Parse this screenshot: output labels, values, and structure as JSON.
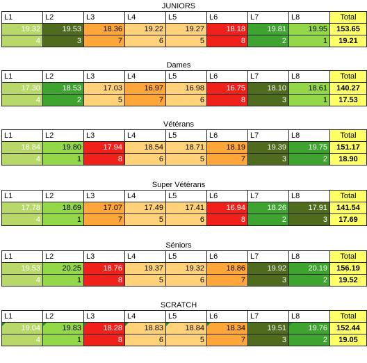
{
  "palette": {
    "dark_olive": "#4f6b1d",
    "green": "#3fa32f",
    "light_green": "#94d84a",
    "yellow_green": "#b9d86a",
    "light_orange": "#ffd27a",
    "orange": "#ffa63b",
    "red": "#f0201a",
    "total_yellow": "#ffff66",
    "rank_olive": "#6f9a2b"
  },
  "sections": [
    {
      "title": "JUNIORS",
      "headers": [
        "L1",
        "L2",
        "L3",
        "L4",
        "L5",
        "L6",
        "L7",
        "L8",
        "Total"
      ],
      "scores": [
        "19.32",
        "19.53",
        "18.36",
        "19.22",
        "19.27",
        "18.18",
        "19.81",
        "19.95",
        "153.65"
      ],
      "ranks": [
        "4",
        "3",
        "7",
        "6",
        "5",
        "8",
        "2",
        "1",
        "19.21"
      ]
    },
    {
      "title": "Dames",
      "headers": [
        "L1",
        "L2",
        "L3",
        "L4",
        "L5",
        "L6",
        "L7",
        "L8",
        "Total"
      ],
      "scores": [
        "17.30",
        "18.53",
        "17.03",
        "16.97",
        "16.98",
        "16.75",
        "18.10",
        "18.61",
        "140.27"
      ],
      "ranks": [
        "4",
        "2",
        "5",
        "7",
        "6",
        "8",
        "3",
        "1",
        "17.53"
      ]
    },
    {
      "title": "Vétérans",
      "headers": [
        "L1",
        "L2",
        "L3",
        "L4",
        "L5",
        "L6",
        "L7",
        "L8",
        "Total"
      ],
      "scores": [
        "18.84",
        "19.80",
        "17.94",
        "18.54",
        "18.71",
        "18.19",
        "19.39",
        "19.75",
        "151.17"
      ],
      "ranks": [
        "4",
        "1",
        "8",
        "6",
        "5",
        "7",
        "3",
        "2",
        "18.90"
      ]
    },
    {
      "title": "Super Vétérans",
      "headers": [
        "L1",
        "L2",
        "L3",
        "L4",
        "L5",
        "L6",
        "L7",
        "L8",
        "Total"
      ],
      "scores": [
        "17.78",
        "18.69",
        "17.07",
        "17.49",
        "17.41",
        "16.94",
        "18.26",
        "17.91",
        "141.54"
      ],
      "ranks": [
        "4",
        "1",
        "7",
        "5",
        "6",
        "8",
        "2",
        "3",
        "17.69"
      ]
    },
    {
      "title": "Séniors",
      "headers": [
        "L1",
        "L2",
        "L3",
        "L4",
        "L5",
        "L6",
        "L7",
        "L8",
        "Total"
      ],
      "scores": [
        "19.53",
        "20.25",
        "18.76",
        "19.37",
        "19.32",
        "18.86",
        "19.92",
        "20.19",
        "156.19"
      ],
      "ranks": [
        "4",
        "1",
        "8",
        "5",
        "6",
        "7",
        "3",
        "2",
        "19.52"
      ]
    },
    {
      "title": "SCRATCH",
      "headers": [
        "L1",
        "L2",
        "L3",
        "L4",
        "L5",
        "L6",
        "L7",
        "L8",
        "Total"
      ],
      "scores": [
        "19.04",
        "19.83",
        "18.28",
        "18.83",
        "18.84",
        "18.34",
        "19.51",
        "19.76",
        "152.44"
      ],
      "ranks": [
        "4",
        "1",
        "8",
        "6",
        "5",
        "7",
        "3",
        "2",
        "19.05"
      ]
    }
  ]
}
